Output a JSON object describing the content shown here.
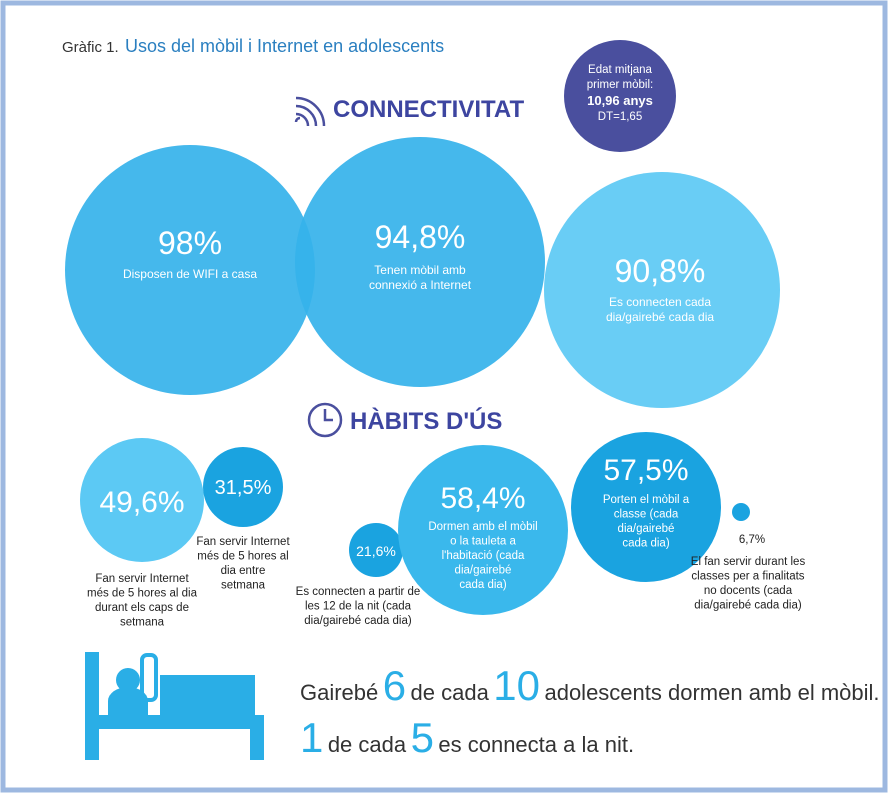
{
  "header": {
    "label": "Gràfic 1.",
    "title": "Usos del mòbil i Internet en adolescents"
  },
  "badge": {
    "lines": [
      "Edat mitjana",
      "primer mòbil:"
    ],
    "value": "10,96 anys",
    "note": "DT=1,65"
  },
  "connectivity": {
    "heading": "CONNECTIVITAT",
    "items": [
      {
        "value": "98%",
        "description": [
          "Disposen de WIFI a casa"
        ]
      },
      {
        "value": "94,8%",
        "description": [
          "Tenen mòbil amb",
          "connexió a Internet"
        ]
      },
      {
        "value": "90,8%",
        "description": [
          "Es connecten cada",
          "dia/gairebé cada dia"
        ]
      }
    ]
  },
  "habits": {
    "heading": "HÀBITS D'ÚS",
    "items": [
      {
        "value": "49,6%",
        "description": [
          "Fan servir Internet",
          "més de 5 hores al dia",
          "durant els caps de",
          "setmana"
        ]
      },
      {
        "value": "31,5%",
        "description": [
          "Fan servir Internet",
          "més de 5 hores al",
          "dia entre",
          "setmana"
        ]
      },
      {
        "value": "21,6%",
        "description": [
          "Es connecten a partir de",
          "les 12 de la nit (cada",
          "dia/gairebé cada dia)"
        ]
      },
      {
        "value": "58,4%",
        "description": [
          "Dormen amb el mòbil",
          "o la tauleta a",
          "l'habitació (cada",
          "dia/gairebé",
          "cada dia)"
        ]
      },
      {
        "value": "57,5%",
        "description": [
          "Porten el mòbil a",
          "classe (cada",
          "dia/gairebé",
          "cada dia)"
        ]
      },
      {
        "value": "6,7%",
        "description": [
          "El fan servir durant les",
          "classes per a finalitats",
          "no docents (cada",
          "dia/gairebé cada dia)"
        ]
      }
    ]
  },
  "summary": {
    "line1": [
      "Gairebé",
      "6",
      "de cada",
      "10",
      "adolescents dormen amb el mòbil."
    ],
    "line2": [
      "1",
      "de cada",
      "5",
      "es connecta a la nit."
    ]
  }
}
